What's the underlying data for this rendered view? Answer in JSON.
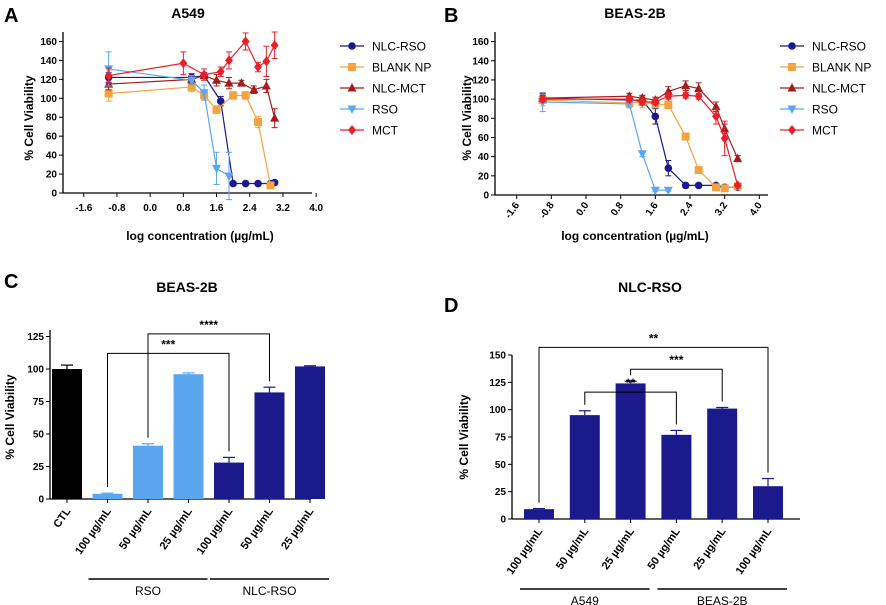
{
  "colors": {
    "nlc_rso": "#1a1a8c",
    "blank_np": "#f4a341",
    "nlc_mct": "#a51c1c",
    "rso": "#5aa7ef",
    "mct": "#e8202a",
    "ctl": "#000000",
    "bar_light": "#5aa7ef",
    "bar_dark": "#1a1a8c",
    "axis": "#000000"
  },
  "chart_data": [
    {
      "panel": "A",
      "type": "line",
      "title": "A549",
      "xlabel": "log concentration (µg/mL)",
      "ylabel": "% Cell Viability",
      "xlim": [
        -2.1,
        3.9
      ],
      "ylim": [
        0,
        170
      ],
      "xticks": [
        -1.6,
        -0.8,
        0.0,
        0.8,
        1.6,
        2.4,
        3.2,
        4.0
      ],
      "xtick_labels": [
        "-1.6",
        "-0.8",
        "0.0",
        "0.8",
        "1.6",
        "2.4",
        "3.2",
        "4.0"
      ],
      "yticks": [
        0,
        20,
        40,
        60,
        80,
        100,
        120,
        140,
        160
      ],
      "ytick_labels": [
        "0",
        "20",
        "40",
        "60",
        "80",
        "100",
        "120",
        "140",
        "160"
      ],
      "series": [
        {
          "name": "NLC-RSO",
          "color_key": "nlc_rso",
          "marker": "circle",
          "x": [
            -1.0,
            1.0,
            1.3,
            1.7,
            2.0,
            2.3,
            2.6,
            2.9,
            3.0
          ],
          "y": [
            122,
            122,
            124,
            97,
            10,
            10,
            10,
            10,
            11
          ],
          "err": [
            5,
            4,
            3,
            5,
            2,
            1,
            1,
            1,
            1
          ]
        },
        {
          "name": "BLANK NP",
          "color_key": "blank_np",
          "marker": "square",
          "x": [
            -1.0,
            1.0,
            1.3,
            1.6,
            2.0,
            2.3,
            2.6,
            2.9
          ],
          "y": [
            105,
            112,
            103,
            88,
            103,
            103,
            75,
            8
          ],
          "err": [
            8,
            5,
            3,
            4,
            4,
            4,
            6,
            1
          ]
        },
        {
          "name": "NLC-MCT",
          "color_key": "nlc_mct",
          "marker": "triangle-up",
          "x": [
            -1.0,
            1.0,
            1.3,
            1.6,
            1.9,
            2.2,
            2.5,
            2.8,
            3.0
          ],
          "y": [
            115,
            120,
            124,
            119,
            116,
            116,
            109,
            113,
            79
          ],
          "err": [
            6,
            4,
            3,
            6,
            6,
            3,
            4,
            7,
            10
          ]
        },
        {
          "name": "RSO",
          "color_key": "rso",
          "marker": "triangle-down",
          "x": [
            -1.0,
            1.0,
            1.3,
            1.6,
            1.9
          ],
          "y": [
            131,
            119,
            106,
            26,
            18
          ],
          "err": [
            18,
            5,
            8,
            17,
            25
          ]
        },
        {
          "name": "MCT",
          "color_key": "mct",
          "marker": "diamond",
          "x": [
            -1.0,
            0.8,
            1.3,
            1.7,
            1.9,
            2.3,
            2.6,
            2.8,
            3.0
          ],
          "y": [
            124,
            137,
            125,
            128,
            140,
            160,
            133,
            139,
            156
          ],
          "err": [
            8,
            12,
            6,
            5,
            9,
            9,
            5,
            16,
            14
          ]
        }
      ]
    },
    {
      "panel": "B",
      "type": "line",
      "title": "BEAS-2B",
      "xlabel": "log concentration (µg/mL)",
      "ylabel": "% Cell Viability",
      "xlim": [
        -2.1,
        4.2
      ],
      "ylim": [
        0,
        170
      ],
      "xticks": [
        -1.6,
        -0.8,
        0.0,
        0.8,
        1.6,
        2.4,
        3.2,
        4.0
      ],
      "xtick_labels": [
        "-1.6",
        "-0.8",
        "0.0",
        "0.8",
        "1.6",
        "2.4",
        "3.2",
        "4.0"
      ],
      "yticks": [
        0,
        20,
        40,
        60,
        80,
        100,
        120,
        140,
        160
      ],
      "ytick_labels": [
        "0",
        "20",
        "40",
        "60",
        "80",
        "100",
        "120",
        "140",
        "160"
      ],
      "series": [
        {
          "name": "NLC-RSO",
          "color_key": "nlc_rso",
          "marker": "circle",
          "x": [
            -1.0,
            1.0,
            1.3,
            1.6,
            1.9,
            2.3,
            2.6,
            3.0,
            3.2,
            3.5
          ],
          "y": [
            101,
            99,
            99,
            82,
            28,
            10,
            10,
            10,
            8,
            8
          ],
          "err": [
            5,
            4,
            4,
            8,
            8,
            2,
            1,
            1,
            1,
            1
          ]
        },
        {
          "name": "BLANK NP",
          "color_key": "blank_np",
          "marker": "square",
          "x": [
            -1.0,
            1.0,
            1.3,
            1.6,
            1.9,
            2.3,
            2.6,
            3.0,
            3.2,
            3.5
          ],
          "y": [
            99,
            96,
            97,
            95,
            94,
            61,
            26,
            8,
            7,
            9
          ],
          "err": [
            6,
            4,
            6,
            4,
            4,
            3,
            3,
            1,
            1,
            1
          ]
        },
        {
          "name": "NLC-MCT",
          "color_key": "nlc_mct",
          "marker": "triangle-up",
          "x": [
            -1.0,
            1.0,
            1.3,
            1.6,
            1.9,
            2.3,
            2.6,
            3.0,
            3.2,
            3.5
          ],
          "y": [
            101,
            103,
            101,
            99,
            108,
            114,
            111,
            92,
            69,
            38
          ],
          "err": [
            3,
            3,
            3,
            3,
            5,
            5,
            6,
            5,
            5,
            3
          ]
        },
        {
          "name": "RSO",
          "color_key": "rso",
          "marker": "triangle-down",
          "x": [
            -1.0,
            1.0,
            1.3,
            1.6,
            1.9
          ],
          "y": [
            97,
            95,
            43,
            5,
            5
          ],
          "err": [
            10,
            4,
            3,
            1,
            1
          ]
        },
        {
          "name": "MCT",
          "color_key": "mct",
          "marker": "diamond",
          "x": [
            -1.0,
            1.0,
            1.3,
            1.6,
            1.9,
            2.3,
            2.6,
            3.0,
            3.2,
            3.5
          ],
          "y": [
            100,
            100,
            97,
            97,
            103,
            104,
            103,
            82,
            59,
            10
          ],
          "err": [
            3,
            3,
            3,
            3,
            3,
            3,
            3,
            8,
            18,
            2
          ]
        }
      ]
    },
    {
      "panel": "C",
      "type": "bar",
      "title": "BEAS-2B",
      "ylabel": "% Cell Viability",
      "ylim": [
        0,
        130
      ],
      "yticks": [
        0,
        25,
        50,
        75,
        100,
        125
      ],
      "ytick_labels": [
        "0",
        "25",
        "50",
        "75",
        "100",
        "125"
      ],
      "categories": [
        "CTL",
        "100 µg/mL",
        "50 µg/mL",
        "25 µg/mL",
        "100 µg/mL",
        "50 µg/mL",
        "25 µg/mL"
      ],
      "values": [
        100,
        4,
        41,
        96,
        28,
        82,
        102
      ],
      "errors": [
        3,
        0.5,
        1.5,
        1,
        4,
        4,
        0.5
      ],
      "bar_color_keys": [
        "ctl",
        "bar_light",
        "bar_light",
        "bar_light",
        "bar_dark",
        "bar_dark",
        "bar_dark"
      ],
      "groups": [
        {
          "label": "RSO",
          "from": 1,
          "to": 3
        },
        {
          "label": "NLC-RSO",
          "from": 4,
          "to": 6
        }
      ],
      "significance": [
        {
          "from": 1,
          "to": 4,
          "label": "***",
          "level": 112
        },
        {
          "from": 2,
          "to": 5,
          "label": "****",
          "level": 127
        }
      ]
    },
    {
      "panel": "D",
      "type": "bar",
      "title": "NLC-RSO",
      "ylabel": "% Cell Viability",
      "ylim": [
        0,
        150
      ],
      "yticks": [
        0,
        25,
        50,
        75,
        100,
        125,
        150
      ],
      "ytick_labels": [
        "0",
        "25",
        "50",
        "75",
        "100",
        "125",
        "150"
      ],
      "categories": [
        "100 µg/mL",
        "50 µg/mL",
        "25 µg/mL",
        "50 µg/mL",
        "25 µg/mL",
        "100 µg/mL"
      ],
      "values": [
        9,
        95,
        124,
        77,
        101,
        30
      ],
      "errors": [
        0.5,
        4,
        2,
        4,
        1,
        7
      ],
      "bar_color_keys": [
        "bar_dark",
        "bar_dark",
        "bar_dark",
        "bar_dark",
        "bar_dark",
        "bar_dark"
      ],
      "groups": [
        {
          "label": "A549",
          "from": 0,
          "to": 2
        },
        {
          "label": "BEAS-2B",
          "from": 3,
          "to": 5
        }
      ],
      "significance": [
        {
          "from": 0,
          "to": 5,
          "label": "**",
          "level": 157
        },
        {
          "from": 2,
          "to": 4,
          "label": "***",
          "level": 137
        },
        {
          "from": 1,
          "to": 3,
          "label": "**",
          "level": 116
        }
      ]
    }
  ],
  "panel_labels": [
    "A",
    "B",
    "C",
    "D"
  ]
}
